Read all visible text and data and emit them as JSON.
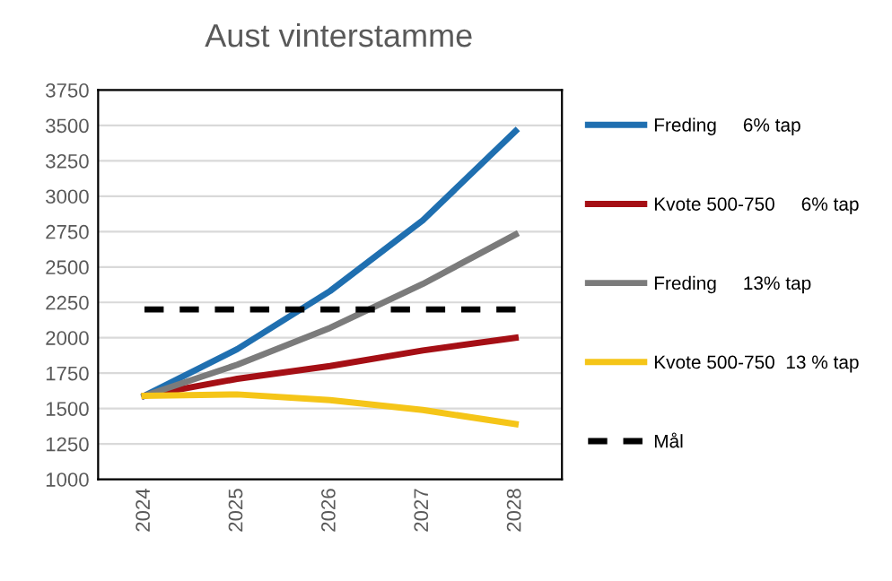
{
  "chart_data": {
    "type": "line",
    "title": "Aust vinterstamme",
    "categories": [
      "2024",
      "2025",
      "2026",
      "2027",
      "2028"
    ],
    "series": [
      {
        "name": "Freding     6% tap",
        "color": "#1f6fb0",
        "values": [
          1590,
          1920,
          2330,
          2830,
          3460
        ]
      },
      {
        "name": "Kvote 500-750     6% tap",
        "color": "#a50f15",
        "values": [
          1590,
          1710,
          1800,
          1910,
          2000
        ]
      },
      {
        "name": "Freding     13% tap",
        "color": "#7b7b7b",
        "values": [
          1590,
          1810,
          2070,
          2380,
          2730
        ]
      },
      {
        "name": "Kvote 500-750  13 % tap",
        "color": "#f5c518",
        "values": [
          1590,
          1600,
          1560,
          1490,
          1390
        ]
      },
      {
        "name": "Mål",
        "color": "#000000",
        "values": [
          2200,
          2200,
          2200,
          2200,
          2200
        ],
        "line_style": "dashed"
      }
    ],
    "ylim": [
      1000,
      3750
    ],
    "yticks": [
      1000,
      1250,
      1500,
      1750,
      2000,
      2250,
      2500,
      2750,
      3000,
      3250,
      3500,
      3750
    ],
    "grid": "y",
    "legend": "right",
    "marker": "none"
  }
}
